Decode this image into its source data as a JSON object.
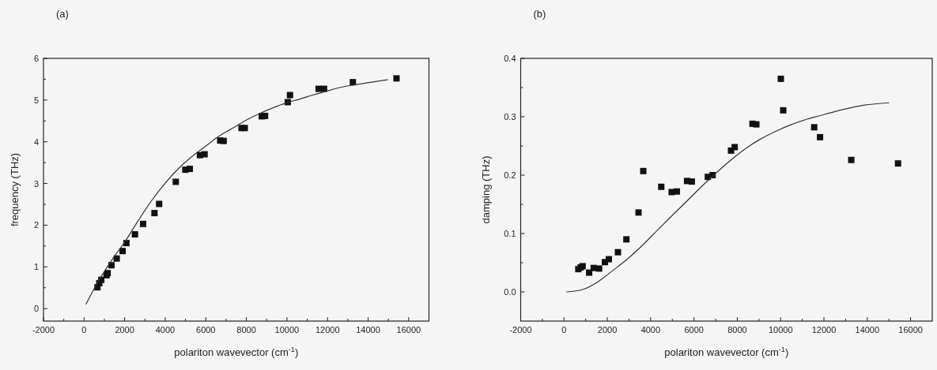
{
  "chart_data": [
    {
      "type": "scatter",
      "title": "(a)",
      "xlabel": "polariton wavevector (cm$^{-1}$)",
      "ylabel": "frequency (THz)",
      "xlim": [
        -2000,
        17000
      ],
      "ylim": [
        -0.3,
        6
      ],
      "xticks": [
        -2000,
        {
          "value": -1000,
          "label": null
        },
        0,
        {
          "value": 1000,
          "label": null
        },
        2000,
        {
          "value": 3000,
          "label": null
        },
        4000,
        {
          "value": 5000,
          "label": null
        },
        6000,
        {
          "value": 7000,
          "label": null
        },
        8000,
        {
          "value": 9000,
          "label": null
        },
        10000,
        {
          "value": 11000,
          "label": null
        },
        12000,
        {
          "value": 13000,
          "label": null
        },
        14000,
        {
          "value": 15000,
          "label": null
        },
        16000
      ],
      "yticks": [
        0,
        {
          "value": 0.5,
          "label": null
        },
        1,
        {
          "value": 1.5,
          "label": null
        },
        2,
        {
          "value": 2.5,
          "label": null
        },
        3,
        {
          "value": 3.5,
          "label": null
        },
        4,
        {
          "value": 4.5,
          "label": null
        },
        5,
        {
          "value": 5.5,
          "label": null
        },
        6
      ],
      "series": [
        {
          "marker": "square",
          "color": "#111111",
          "x": [
            660,
            750,
            850,
            1110,
            1160,
            1350,
            1610,
            1900,
            2090,
            2510,
            2910,
            3470,
            3700,
            4520,
            4990,
            5210,
            5710,
            5940,
            6710,
            6880,
            7760,
            7920,
            8760,
            8920,
            10040,
            10150,
            11560,
            11830,
            13250,
            15400
          ],
          "values": [
            0.51,
            0.61,
            0.69,
            0.8,
            0.85,
            1.04,
            1.2,
            1.38,
            1.57,
            1.78,
            2.03,
            2.29,
            2.51,
            3.04,
            3.33,
            3.35,
            3.68,
            3.7,
            4.03,
            4.02,
            4.33,
            4.33,
            4.61,
            4.62,
            4.95,
            5.12,
            5.27,
            5.27,
            5.43,
            5.52
          ]
        },
        {
          "type": "line",
          "line_style": "solid",
          "color": "#333333",
          "x": [
            90,
            690,
            1350,
            2010,
            2670,
            3330,
            4000,
            4660,
            5320,
            5980,
            6640,
            7300,
            7960,
            8620,
            9290,
            9950,
            10610,
            11270,
            11930,
            12590,
            13250,
            13920,
            14970
          ],
          "values": [
            0.1,
            0.64,
            1.15,
            1.6,
            2.11,
            2.59,
            3.01,
            3.36,
            3.65,
            3.89,
            4.13,
            4.32,
            4.51,
            4.67,
            4.81,
            4.93,
            5.02,
            5.12,
            5.21,
            5.3,
            5.36,
            5.41,
            5.49
          ]
        }
      ]
    },
    {
      "type": "scatter",
      "title": "(b)",
      "xlabel": "polariton wavevector (cm$^{-1}$)",
      "ylabel": "damping (THz)",
      "xlim": [
        -2000,
        17000
      ],
      "ylim": [
        -0.05,
        0.4
      ],
      "xticks": [
        -2000,
        {
          "value": -1000,
          "label": null
        },
        0,
        {
          "value": 1000,
          "label": null
        },
        2000,
        {
          "value": 3000,
          "label": null
        },
        4000,
        {
          "value": 5000,
          "label": null
        },
        6000,
        {
          "value": 7000,
          "label": null
        },
        8000,
        {
          "value": 9000,
          "label": null
        },
        10000,
        {
          "value": 11000,
          "label": null
        },
        12000,
        {
          "value": 13000,
          "label": null
        },
        14000,
        {
          "value": 15000,
          "label": null
        },
        16000
      ],
      "yticks": [
        {
          "value": 0,
          "label": "0.0"
        },
        {
          "value": 0.05,
          "label": null
        },
        0.1,
        {
          "value": 0.15,
          "label": null
        },
        0.2,
        {
          "value": 0.25,
          "label": null
        },
        0.3,
        {
          "value": 0.35,
          "label": null
        },
        0.4
      ],
      "series": [
        {
          "marker": "square",
          "color": "#111111",
          "x": [
            660,
            770,
            860,
            1160,
            1370,
            1620,
            1890,
            2070,
            2490,
            2880,
            3440,
            3660,
            4490,
            4970,
            5210,
            5680,
            5900,
            6640,
            6860,
            7710,
            7880,
            8700,
            8880,
            10010,
            10120,
            11550,
            11820,
            13260,
            15420
          ],
          "values": [
            0.039,
            0.042,
            0.044,
            0.033,
            0.041,
            0.04,
            0.051,
            0.056,
            0.068,
            0.09,
            0.136,
            0.207,
            0.18,
            0.171,
            0.172,
            0.19,
            0.189,
            0.197,
            0.2,
            0.242,
            0.248,
            0.288,
            0.287,
            0.365,
            0.311,
            0.282,
            0.265,
            0.226,
            0.22
          ]
        },
        {
          "type": "line",
          "line_style": "solid",
          "color": "#333333",
          "x": [
            110,
            860,
            1550,
            2230,
            2920,
            3600,
            4290,
            4970,
            5660,
            6340,
            7030,
            7710,
            8400,
            9080,
            9770,
            10450,
            11140,
            11820,
            12510,
            13190,
            13880,
            15010
          ],
          "values": [
            0.0,
            0.004,
            0.017,
            0.036,
            0.056,
            0.079,
            0.105,
            0.13,
            0.155,
            0.18,
            0.204,
            0.226,
            0.246,
            0.262,
            0.275,
            0.286,
            0.295,
            0.302,
            0.309,
            0.315,
            0.32,
            0.324
          ]
        }
      ]
    }
  ]
}
